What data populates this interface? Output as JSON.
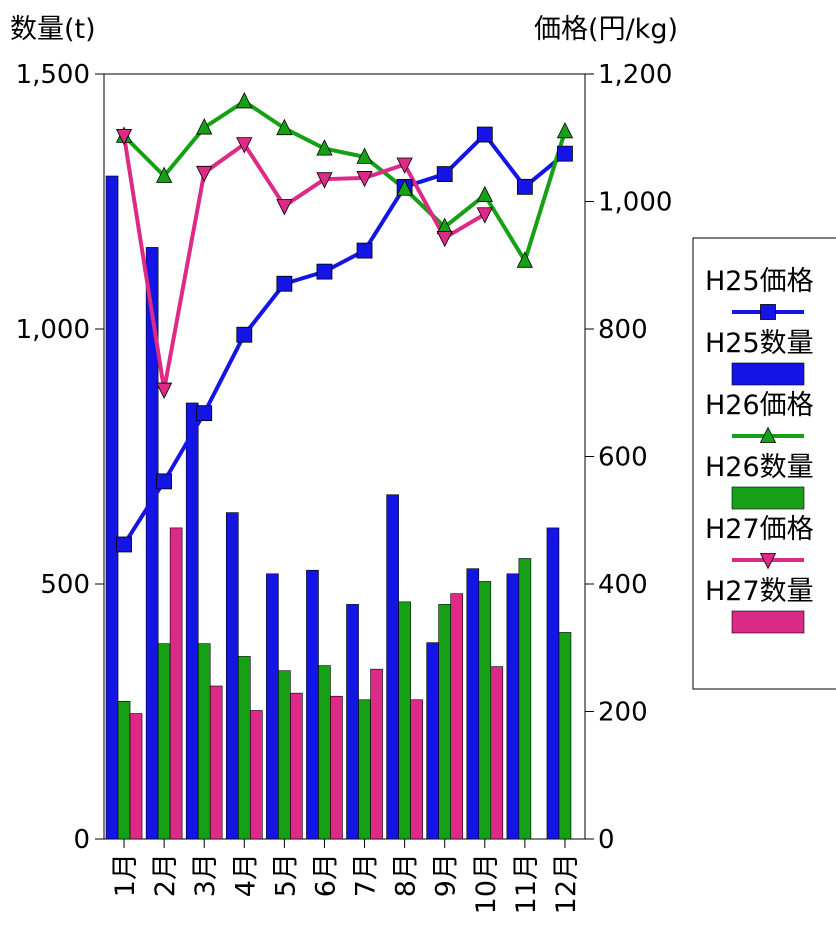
{
  "chart_data": {
    "type": "bar+line",
    "left_axis": {
      "title": "数量(t)",
      "ylim": [
        0,
        1500
      ],
      "ticks": [
        0,
        500,
        1000,
        1500
      ],
      "tick_labels": [
        "0",
        "500",
        "1,000",
        "1,500"
      ]
    },
    "right_axis": {
      "title": "価格(円/kg)",
      "ylim": [
        0,
        1200
      ],
      "ticks": [
        0,
        200,
        400,
        600,
        800,
        1000,
        1200
      ],
      "tick_labels": [
        "0",
        "200",
        "400",
        "600",
        "800",
        "1,000",
        "1,200"
      ]
    },
    "categories": [
      "1月",
      "2月",
      "3月",
      "4月",
      "5月",
      "6月",
      "7月",
      "8月",
      "9月",
      "10月",
      "11月",
      "12月"
    ],
    "bar_series": [
      {
        "name": "H25数量",
        "color": "#1414e6",
        "values": [
          1300,
          1160,
          855,
          640,
          520,
          527,
          460,
          675,
          385,
          530,
          520,
          610
        ]
      },
      {
        "name": "H26数量",
        "color": "#15a015",
        "values": [
          270,
          383,
          383,
          358,
          330,
          340,
          273,
          465,
          460,
          505,
          550,
          405
        ]
      },
      {
        "name": "H27数量",
        "color": "#dd2a86",
        "values": [
          246,
          610,
          300,
          252,
          286,
          280,
          333,
          273,
          481,
          338,
          null,
          null
        ]
      }
    ],
    "line_series": [
      {
        "name": "H25価格",
        "color": "#1414e6",
        "marker": "square",
        "values": [
          462,
          561,
          668,
          791,
          871,
          890,
          923,
          1023,
          1043,
          1105,
          1023,
          1075
        ]
      },
      {
        "name": "H26価格",
        "color": "#15a015",
        "marker": "triangle-up",
        "values": [
          1103,
          1040,
          1116,
          1157,
          1115,
          1083,
          1070,
          1020,
          960,
          1010,
          907,
          1110
        ]
      },
      {
        "name": "H27価格",
        "color": "#dd2a86",
        "marker": "triangle-down",
        "values": [
          1103,
          705,
          1045,
          1090,
          993,
          1035,
          1037,
          1058,
          943,
          980,
          null,
          null
        ]
      }
    ],
    "legend": {
      "placement": "right",
      "items": [
        {
          "label": "H25価格",
          "kind": "line",
          "color": "#1414e6",
          "marker": "square"
        },
        {
          "label": "H25数量",
          "kind": "bar",
          "color": "#1414e6"
        },
        {
          "label": "H26価格",
          "kind": "line",
          "color": "#15a015",
          "marker": "triangle-up"
        },
        {
          "label": "H26数量",
          "kind": "bar",
          "color": "#15a015"
        },
        {
          "label": "H27価格",
          "kind": "line",
          "color": "#dd2a86",
          "marker": "triangle-down"
        },
        {
          "label": "H27数量",
          "kind": "bar",
          "color": "#dd2a86"
        }
      ]
    },
    "grid": false
  }
}
